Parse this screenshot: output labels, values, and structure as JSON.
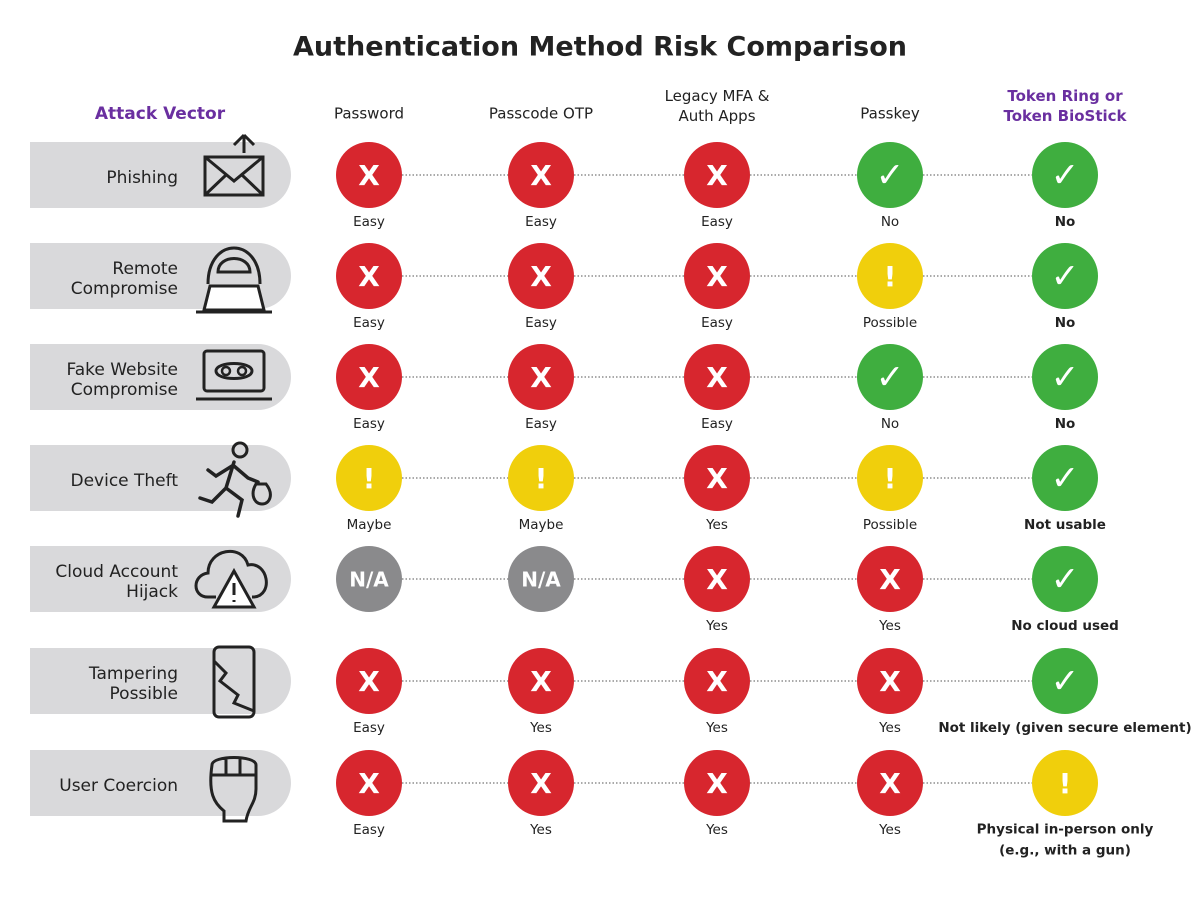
{
  "header": {
    "title": "Authentication Method Risk Comparison",
    "row_header": "Attack Vector",
    "columns": [
      "Password",
      "Passcode OTP",
      "Legacy MFA &\nAuth Apps",
      "Passkey",
      "Token Ring or\nToken BioStick"
    ]
  },
  "rows": [
    {
      "label": "Phishing",
      "cells": [
        {
          "symbol": "X",
          "label": "Easy",
          "color": "#d7262e"
        },
        {
          "symbol": "X",
          "label": "Easy",
          "color": "#d7262e"
        },
        {
          "symbol": "X",
          "label": "Easy",
          "color": "#d7262e"
        },
        {
          "symbol": "✓",
          "label": "No",
          "color": "#3fae3f"
        },
        {
          "symbol": "✓",
          "label": "No",
          "color": "#3fae3f"
        }
      ]
    },
    {
      "label": "Remote\nCompromise",
      "cells": [
        {
          "symbol": "X",
          "label": "Easy",
          "color": "#d7262e"
        },
        {
          "symbol": "X",
          "label": "Easy",
          "color": "#d7262e"
        },
        {
          "symbol": "X",
          "label": "Easy",
          "color": "#d7262e"
        },
        {
          "symbol": "!",
          "label": "Possible",
          "color": "#f0cf0c"
        },
        {
          "symbol": "✓",
          "label": "No",
          "color": "#3fae3f"
        }
      ]
    },
    {
      "label": "Fake Website\nCompromise",
      "cells": [
        {
          "symbol": "X",
          "label": "Easy",
          "color": "#d7262e"
        },
        {
          "symbol": "X",
          "label": "Easy",
          "color": "#d7262e"
        },
        {
          "symbol": "X",
          "label": "Easy",
          "color": "#d7262e"
        },
        {
          "symbol": "✓",
          "label": "No",
          "color": "#3fae3f"
        },
        {
          "symbol": "✓",
          "label": "No",
          "color": "#3fae3f"
        }
      ]
    },
    {
      "label": "Device Theft",
      "cells": [
        {
          "symbol": "!",
          "label": "Maybe",
          "color": "#f0cf0c"
        },
        {
          "symbol": "!",
          "label": "Maybe",
          "color": "#f0cf0c"
        },
        {
          "symbol": "X",
          "label": "Yes",
          "color": "#d7262e"
        },
        {
          "symbol": "!",
          "label": "Possible",
          "color": "#f0cf0c"
        },
        {
          "symbol": "✓",
          "label": "Not usable",
          "color": "#3fae3f"
        }
      ]
    },
    {
      "label": "Cloud Account\nHijack",
      "cells": [
        {
          "symbol": "N/A",
          "color": "#8a8a8c"
        },
        {
          "symbol": "N/A",
          "color": "#8a8a8c"
        },
        {
          "symbol": "X",
          "label": "Yes",
          "color": "#d7262e"
        },
        {
          "symbol": "X",
          "label": "Yes",
          "color": "#d7262e"
        },
        {
          "symbol": "✓",
          "label": "No cloud used",
          "color": "#3fae3f"
        }
      ]
    },
    {
      "label": "Tampering\nPossible",
      "cells": [
        {
          "symbol": "X",
          "label": "Easy",
          "color": "#d7262e"
        },
        {
          "symbol": "X",
          "label": "Yes",
          "color": "#d7262e"
        },
        {
          "symbol": "X",
          "label": "Yes",
          "color": "#d7262e"
        },
        {
          "symbol": "X",
          "label": "Yes",
          "color": "#d7262e"
        },
        {
          "symbol": "✓",
          "label": "Not likely (given secure element)",
          "color": "#3fae3f"
        }
      ]
    },
    {
      "label": "User Coercion",
      "cells": [
        {
          "symbol": "X",
          "label": "Easy",
          "color": "#d7262e"
        },
        {
          "symbol": "X",
          "label": "Yes",
          "color": "#d7262e"
        },
        {
          "symbol": "X",
          "label": "Yes",
          "color": "#d7262e"
        },
        {
          "symbol": "X",
          "label": "Yes",
          "color": "#d7262e"
        },
        {
          "symbol": "!",
          "label": "Physical in-person only\n(e.g., with a gun)",
          "color": "#f0cf0c"
        }
      ]
    }
  ]
}
